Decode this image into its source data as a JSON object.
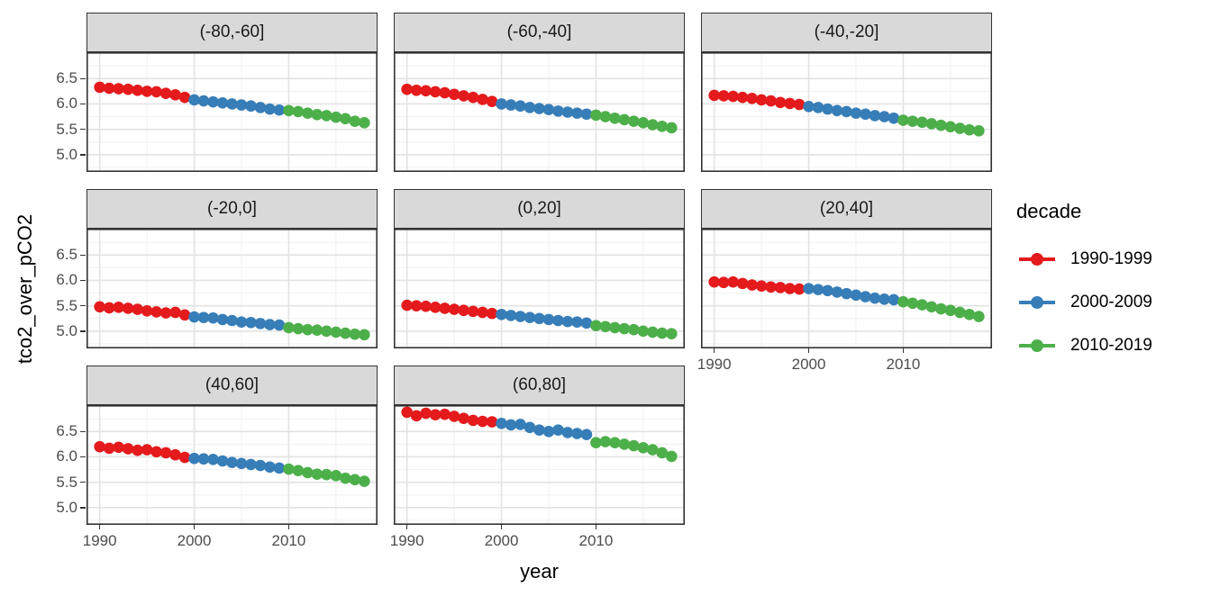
{
  "figure": {
    "y_axis_title": "tco2_over_pCO2",
    "x_axis_title": "year",
    "legend": {
      "title": "decade"
    }
  },
  "chart_data": {
    "type": "scatter",
    "title": "",
    "xlabel": "year",
    "ylabel": "tco2_over_pCO2",
    "grid": true,
    "legend_position": "right",
    "xlim": [
      1988.6,
      2019.4
    ],
    "ylim": [
      4.66,
      7.02
    ],
    "xticks": [
      {
        "v": 1990,
        "label": "1990"
      },
      {
        "v": 2000,
        "label": "2000"
      },
      {
        "v": 2010,
        "label": "2010"
      }
    ],
    "yticks": [
      {
        "v": 6.5,
        "label": "6.5"
      },
      {
        "v": 6.0,
        "label": "6.0"
      },
      {
        "v": 5.5,
        "label": "5.5"
      },
      {
        "v": 5.0,
        "label": "5.0"
      }
    ],
    "x_minor": [
      1995,
      2005,
      2015
    ],
    "y_minor": [
      4.75,
      5.25,
      5.75,
      6.25,
      6.75
    ],
    "x_years": [
      1990,
      1991,
      1992,
      1993,
      1994,
      1995,
      1996,
      1997,
      1998,
      1999,
      2000,
      2001,
      2002,
      2003,
      2004,
      2005,
      2006,
      2007,
      2008,
      2009,
      2010,
      2011,
      2012,
      2013,
      2014,
      2015,
      2016,
      2017,
      2018
    ],
    "series": [
      {
        "name": "1990-1999",
        "color": "#E41A1C",
        "start_year": 1990,
        "end_year": 1999
      },
      {
        "name": "2000-2009",
        "color": "#377EB8",
        "start_year": 2000,
        "end_year": 2009
      },
      {
        "name": "2010-2019",
        "color": "#4DAF4A",
        "start_year": 2010,
        "end_year": 2019
      }
    ],
    "facets": [
      {
        "label": "(-80,-60]",
        "values": [
          6.33,
          6.31,
          6.3,
          6.29,
          6.27,
          6.25,
          6.24,
          6.21,
          6.18,
          6.13,
          6.08,
          6.06,
          6.04,
          6.02,
          6.0,
          5.98,
          5.96,
          5.93,
          5.9,
          5.88,
          5.87,
          5.85,
          5.82,
          5.79,
          5.77,
          5.74,
          5.71,
          5.66,
          5.63
        ]
      },
      {
        "label": "(-60,-40]",
        "values": [
          6.29,
          6.27,
          6.26,
          6.24,
          6.22,
          6.19,
          6.16,
          6.13,
          6.09,
          6.05,
          6.0,
          5.98,
          5.96,
          5.93,
          5.91,
          5.89,
          5.86,
          5.84,
          5.82,
          5.8,
          5.78,
          5.75,
          5.72,
          5.69,
          5.66,
          5.63,
          5.59,
          5.56,
          5.53
        ]
      },
      {
        "label": "(-40,-20]",
        "values": [
          6.17,
          6.16,
          6.15,
          6.13,
          6.11,
          6.08,
          6.06,
          6.03,
          6.01,
          5.99,
          5.95,
          5.93,
          5.9,
          5.87,
          5.85,
          5.82,
          5.8,
          5.77,
          5.75,
          5.72,
          5.68,
          5.66,
          5.64,
          5.61,
          5.58,
          5.55,
          5.52,
          5.49,
          5.47
        ]
      },
      {
        "label": "(-20,0]",
        "values": [
          5.48,
          5.46,
          5.47,
          5.45,
          5.43,
          5.4,
          5.38,
          5.36,
          5.37,
          5.32,
          5.28,
          5.27,
          5.26,
          5.23,
          5.21,
          5.18,
          5.17,
          5.15,
          5.13,
          5.12,
          5.07,
          5.05,
          5.03,
          5.02,
          5.0,
          4.98,
          4.96,
          4.94,
          4.93
        ]
      },
      {
        "label": "(0,20]",
        "values": [
          5.51,
          5.5,
          5.49,
          5.47,
          5.45,
          5.43,
          5.41,
          5.39,
          5.37,
          5.35,
          5.33,
          5.31,
          5.29,
          5.27,
          5.25,
          5.23,
          5.21,
          5.19,
          5.18,
          5.16,
          5.11,
          5.09,
          5.07,
          5.05,
          5.03,
          5.0,
          4.98,
          4.96,
          4.95
        ]
      },
      {
        "label": "(20,40]",
        "values": [
          5.97,
          5.96,
          5.97,
          5.94,
          5.91,
          5.89,
          5.87,
          5.86,
          5.84,
          5.83,
          5.84,
          5.82,
          5.8,
          5.77,
          5.74,
          5.71,
          5.68,
          5.65,
          5.63,
          5.62,
          5.58,
          5.55,
          5.52,
          5.48,
          5.44,
          5.41,
          5.37,
          5.33,
          5.29
        ]
      },
      {
        "label": "(40,60]",
        "values": [
          6.2,
          6.17,
          6.19,
          6.16,
          6.13,
          6.14,
          6.1,
          6.08,
          6.04,
          5.99,
          5.97,
          5.96,
          5.95,
          5.92,
          5.89,
          5.87,
          5.85,
          5.83,
          5.8,
          5.78,
          5.76,
          5.73,
          5.69,
          5.66,
          5.65,
          5.63,
          5.58,
          5.55,
          5.52
        ]
      },
      {
        "label": "(60,80]",
        "values": [
          6.88,
          6.81,
          6.86,
          6.83,
          6.84,
          6.8,
          6.76,
          6.72,
          6.7,
          6.69,
          6.66,
          6.63,
          6.64,
          6.58,
          6.53,
          6.5,
          6.53,
          6.48,
          6.46,
          6.44,
          6.28,
          6.3,
          6.28,
          6.25,
          6.22,
          6.18,
          6.14,
          6.08,
          6.01
        ]
      }
    ]
  }
}
